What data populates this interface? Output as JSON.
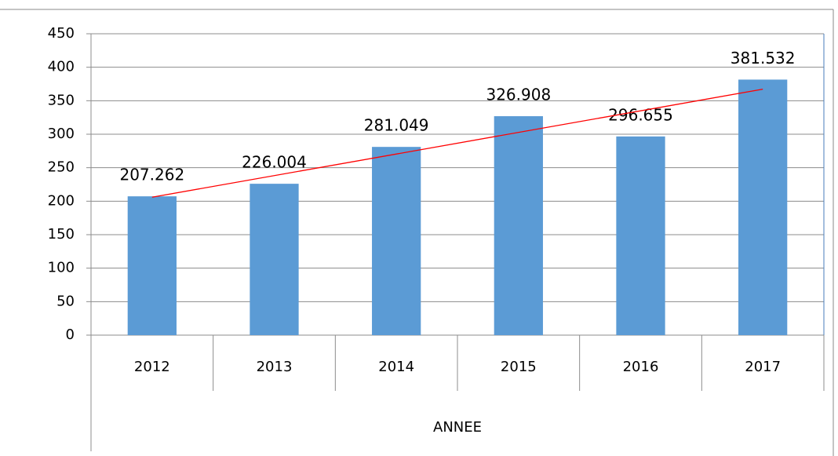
{
  "chart_data": {
    "type": "bar",
    "categories": [
      "2012",
      "2013",
      "2014",
      "2015",
      "2016",
      "2017"
    ],
    "values": [
      207.262,
      226.004,
      281.049,
      326.908,
      296.655,
      381.532
    ],
    "color": "#5b9bd5",
    "xlabel": "ANNEE",
    "ylim": [
      0,
      450
    ],
    "yticks": [
      0,
      50,
      100,
      150,
      200,
      250,
      300,
      350,
      400,
      450
    ],
    "grid": true,
    "data_labels": true,
    "trendline": {
      "type": "linear",
      "color": "#ff0000"
    }
  }
}
